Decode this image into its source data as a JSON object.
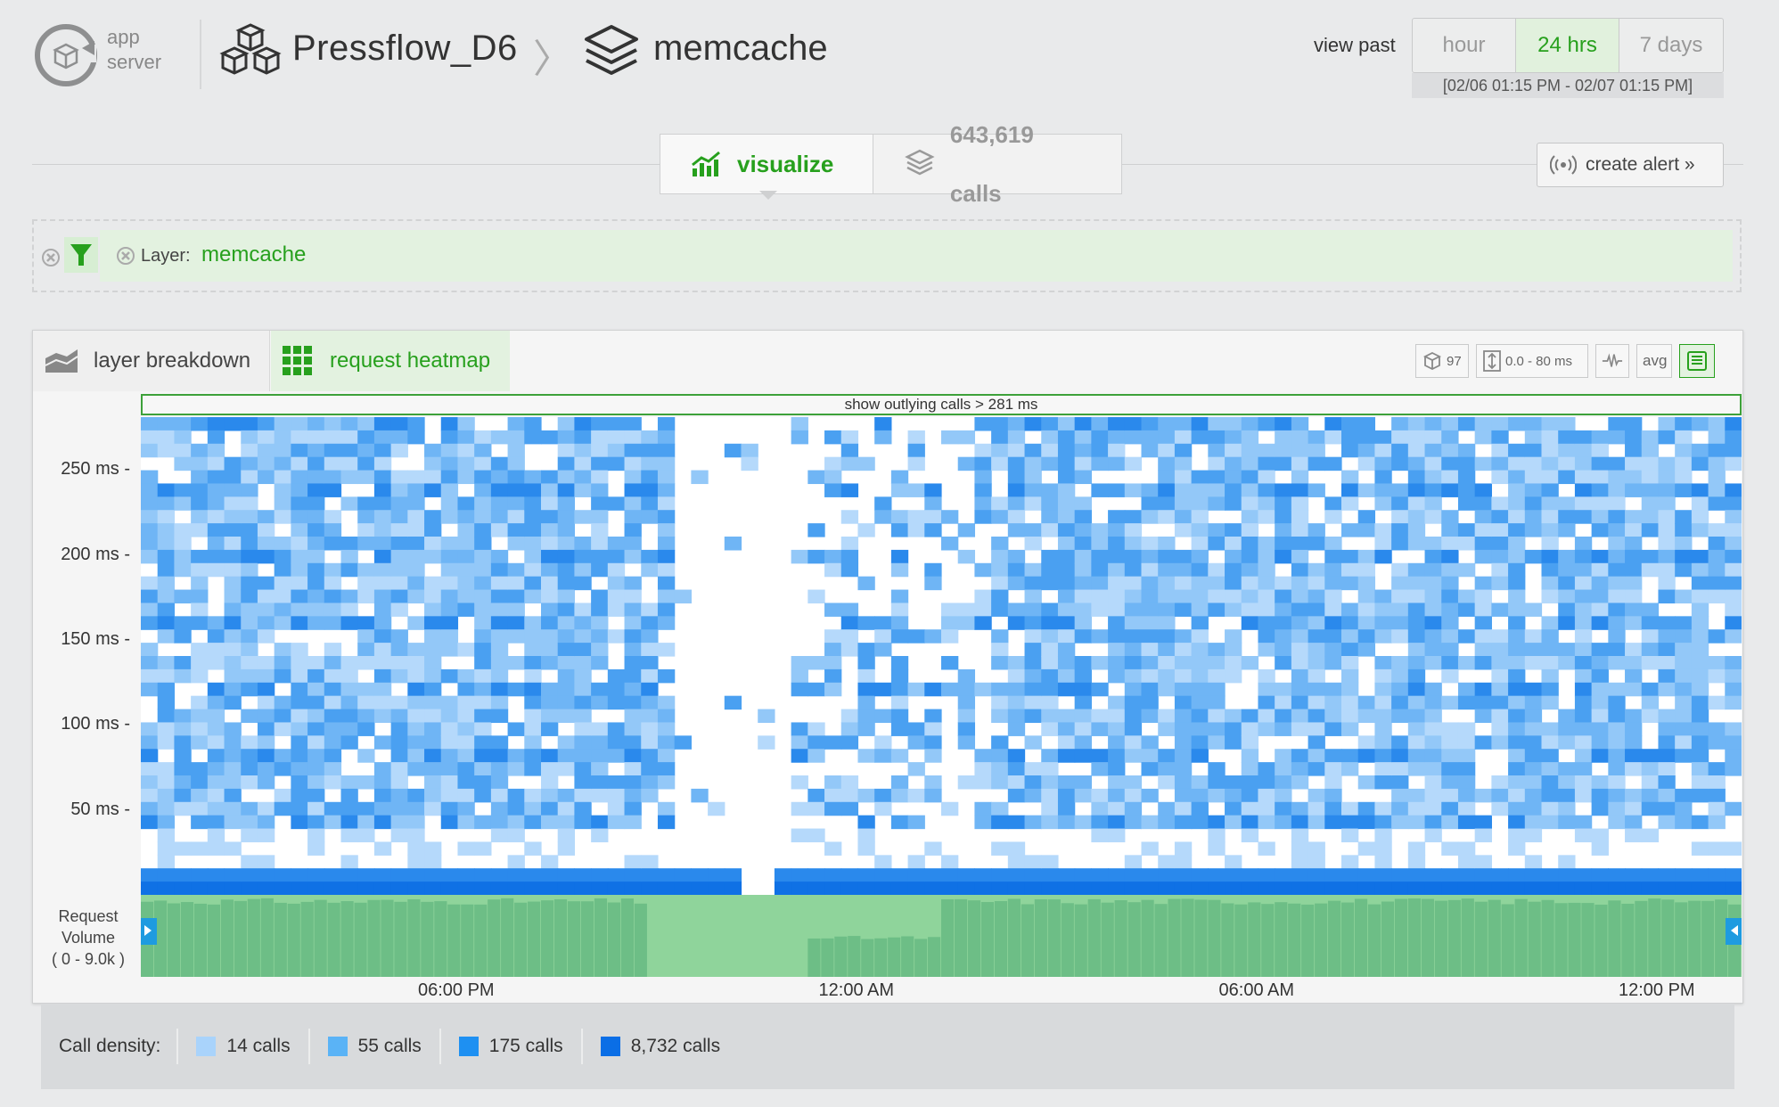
{
  "header": {
    "app_label_line1": "app",
    "app_label_line2": "server",
    "breadcrumb_app": "Pressflow_D6",
    "breadcrumb_separator": "〉",
    "breadcrumb_layer": "memcache",
    "view_past_label": "view past",
    "ranges": [
      "hour",
      "24 hrs",
      "7 days"
    ],
    "active_range": "24 hrs",
    "date_range": "[02/06 01:15 PM - 02/07 01:15 PM]"
  },
  "toolbar": {
    "visualize_label": "visualize",
    "calls_label": "643,619 calls",
    "create_alert_label": "create alert »",
    "active_tab": "visualize"
  },
  "filter": {
    "label": "Layer:",
    "value": "memcache"
  },
  "panel": {
    "tab_layer_breakdown": "layer breakdown",
    "tab_request_heatmap": "request heatmap",
    "active_tab": "request heatmap",
    "tool_hosts_count": "97",
    "tool_range": "0.0 - 80 ms",
    "tool_avg": "avg",
    "outlier_bar": "show outlying calls > 281 ms"
  },
  "chart_data": {
    "type": "heatmap",
    "y_axis_ticks": [
      "250 ms",
      "200 ms",
      "150 ms",
      "100 ms",
      "50 ms"
    ],
    "y_tick_values": [
      250,
      200,
      150,
      100,
      50
    ],
    "ylim": [
      0,
      281
    ],
    "x_axis_ticks": [
      "06:00 PM",
      "12:00 AM",
      "06:00 AM",
      "12:00 PM"
    ],
    "x_tick_fraction": [
      0.197,
      0.447,
      0.697,
      0.947
    ],
    "time_range_hours": 24,
    "volume_label": "Request Volume",
    "volume_range": "( 0 - 9.0k )",
    "volume_max": 9000,
    "legend_title": "Call density:",
    "legend": [
      {
        "label": "14 calls",
        "color": "#a9d3fb"
      },
      {
        "label": "55 calls",
        "color": "#5ab3f6"
      },
      {
        "label": "175 calls",
        "color": "#1e90f2"
      },
      {
        "label": "8,732 calls",
        "color": "#0a6ee6"
      }
    ],
    "colors": {
      "volume_bar": "#6dbe86",
      "volume_gap": "#8fd49b"
    }
  }
}
